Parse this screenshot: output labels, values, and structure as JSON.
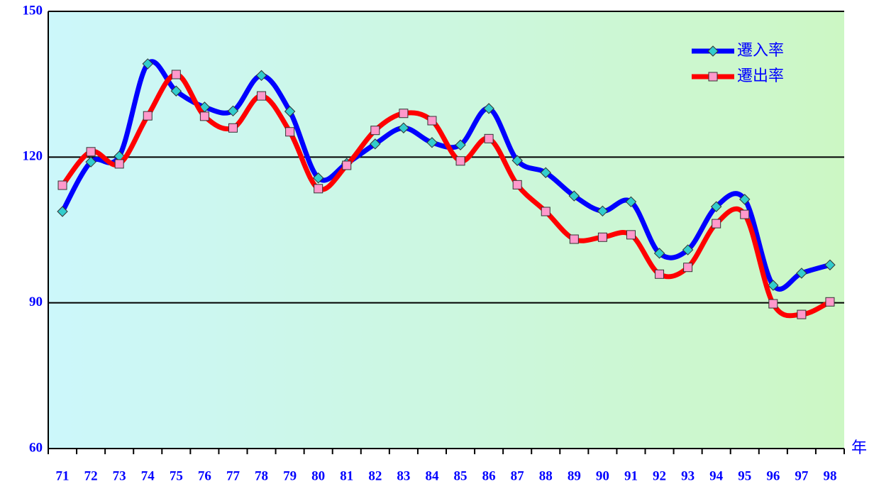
{
  "chart_data": {
    "type": "line",
    "categories": [
      "71",
      "72",
      "73",
      "74",
      "75",
      "76",
      "77",
      "78",
      "79",
      "80",
      "81",
      "82",
      "83",
      "84",
      "85",
      "86",
      "87",
      "88",
      "89",
      "90",
      "91",
      "92",
      "93",
      "94",
      "95",
      "96",
      "97",
      "98"
    ],
    "xlabel": "年",
    "series": [
      {
        "name": "遷入率",
        "color": "#0000ff",
        "marker_color": "#33cccc",
        "marker": "diamond",
        "values": [
          108.8,
          119.0,
          120.2,
          139.2,
          133.6,
          130.3,
          129.5,
          136.8,
          129.4,
          115.7,
          118.7,
          122.7,
          126.0,
          123.0,
          122.5,
          130.0,
          119.3,
          116.8,
          112.0,
          108.9,
          110.8,
          100.2,
          100.9,
          109.8,
          111.3,
          93.6,
          96.1,
          97.8
        ]
      },
      {
        "name": "遷出率",
        "color": "#ff0000",
        "marker_color": "#ff99cc",
        "marker": "square",
        "values": [
          114.2,
          121.1,
          118.6,
          128.5,
          137.0,
          128.4,
          126.0,
          132.6,
          125.2,
          113.5,
          118.3,
          125.5,
          129.0,
          127.5,
          119.2,
          123.8,
          114.3,
          108.8,
          103.1,
          103.5,
          104.0,
          95.9,
          97.3,
          106.3,
          108.2,
          89.8,
          87.6,
          90.2
        ]
      }
    ],
    "ylim": [
      60,
      150
    ],
    "yticks": [
      60,
      90,
      120,
      150
    ],
    "grid": true,
    "legend": "upper right"
  }
}
